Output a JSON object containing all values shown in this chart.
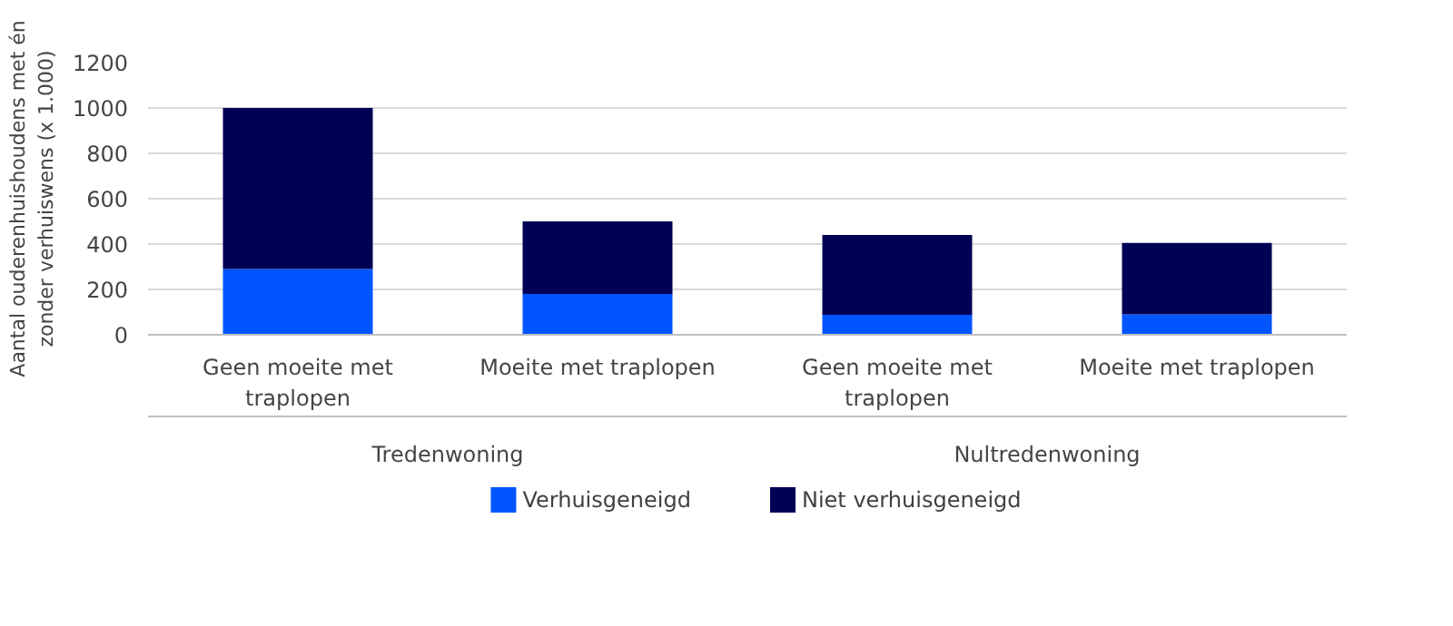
{
  "chart_data": {
    "type": "bar",
    "stacked": true,
    "ylabel": "Aantal ouderenhuishoudens met én zonder verhuiswens (x 1.000)",
    "categories": [
      "Geen moeite met traplopen",
      "Moeite met traplopen",
      "Geen moeite met traplopen",
      "Moeite met traplopen"
    ],
    "annotations": [
      "Tredenwoning",
      "Nultredenwoning"
    ],
    "series": [
      {
        "name": "Verhuisgeneigd",
        "color": "#0055ff",
        "values": [
          290,
          180,
          88,
          90
        ]
      },
      {
        "name": "Niet verhuisgeneigd",
        "color": "#000055",
        "values": [
          710,
          320,
          352,
          315
        ]
      }
    ],
    "ylim": [
      0,
      1200
    ],
    "yticks": [
      0,
      200,
      400,
      600,
      800,
      1000,
      1200
    ],
    "grid": "y",
    "legend": "bottom"
  }
}
